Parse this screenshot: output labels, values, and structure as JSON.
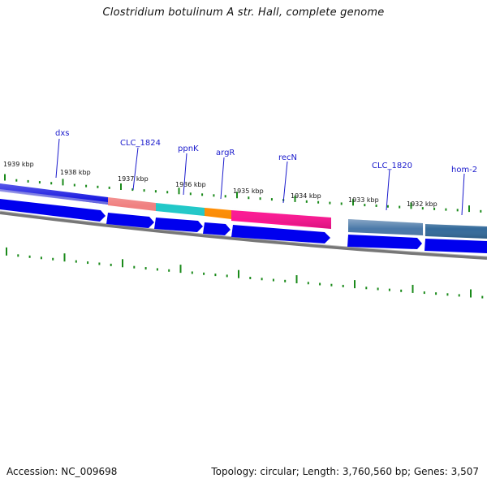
{
  "title": "Clostridium botulinum A str. Hall, complete genome",
  "accession_text": "Accession: NC_009698",
  "stats_text": "Topology: circular; Length: 3,760,560 bp; Genes: 3,507",
  "colors": {
    "gene_blue": "#0000ee",
    "tick_green": "#1a8a1a",
    "backbone": "#888888",
    "label_blue": "#1a1acc"
  },
  "ticks": [
    "1939 kbp",
    "1938 kbp",
    "1937 kbp",
    "1936 kbp",
    "1935 kbp",
    "1934 kbp",
    "1933 kbp",
    "1932 kbp"
  ],
  "genes": [
    {
      "name": "dxs",
      "color": "#0000dd"
    },
    {
      "name": "CLC_1824",
      "color": "#f08080"
    },
    {
      "name": "ppnK",
      "color": "#20c8c8"
    },
    {
      "name": "argR",
      "color": "#ff8c00"
    },
    {
      "name": "recN",
      "color": "#ff1493"
    },
    {
      "name": "CLC_1820",
      "color": "#4a78a8"
    },
    {
      "name": "hom-2",
      "color": "#336a9a"
    }
  ]
}
